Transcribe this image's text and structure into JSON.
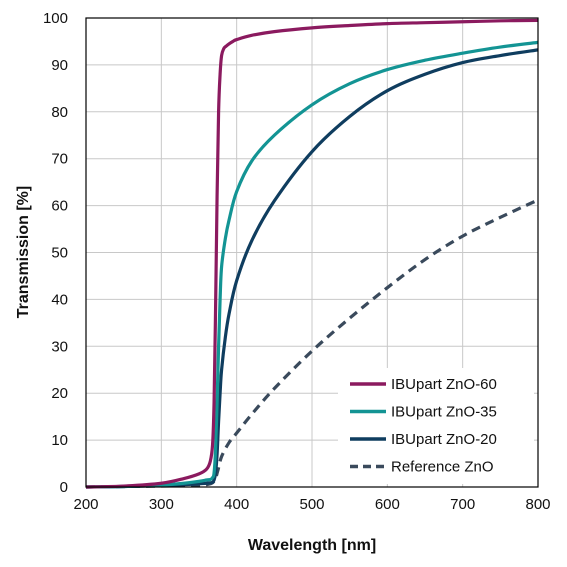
{
  "chart_data": {
    "type": "line",
    "xlabel": "Wavelength [nm]",
    "ylabel": "Transmission [%]",
    "xlim": [
      200,
      800
    ],
    "ylim": [
      0,
      100
    ],
    "x_ticks": [
      200,
      300,
      400,
      500,
      600,
      700,
      800
    ],
    "y_ticks": [
      0,
      10,
      20,
      30,
      40,
      50,
      60,
      70,
      80,
      90,
      100
    ],
    "x_tick_labels": [
      "200",
      "300",
      "400",
      "500",
      "600",
      "700",
      "800"
    ],
    "y_tick_labels": [
      "0",
      "10",
      "20",
      "30",
      "40",
      "50",
      "60",
      "70",
      "80",
      "90",
      "100"
    ],
    "grid": true,
    "legend_position": "bottom-right",
    "series": [
      {
        "name": "IBUpart ZnO-60",
        "color": "#8b1a5f",
        "dash": "solid",
        "x": [
          200,
          250,
          300,
          330,
          350,
          360,
          365,
          368,
          370,
          372,
          374,
          376,
          378,
          380,
          383,
          386,
          390,
          395,
          400,
          420,
          450,
          500,
          550,
          600,
          650,
          700,
          750,
          800
        ],
        "y": [
          0,
          0.2,
          0.8,
          1.8,
          2.8,
          3.8,
          5.5,
          9,
          18,
          38,
          62,
          80,
          88,
          92,
          93.5,
          94,
          94.5,
          95,
          95.4,
          96.3,
          97.1,
          97.9,
          98.4,
          98.8,
          99.0,
          99.2,
          99.4,
          99.5
        ]
      },
      {
        "name": "IBUpart ZnO-35",
        "color": "#139494",
        "dash": "solid",
        "x": [
          200,
          250,
          300,
          330,
          350,
          360,
          365,
          368,
          370,
          372,
          374,
          376,
          378,
          380,
          385,
          390,
          400,
          420,
          450,
          500,
          550,
          600,
          650,
          700,
          750,
          800
        ],
        "y": [
          0,
          0.1,
          0.4,
          0.8,
          1.2,
          1.5,
          1.6,
          2,
          3,
          8,
          18,
          30,
          40,
          47,
          53,
          57,
          63,
          69.5,
          75,
          81.5,
          86,
          89,
          91,
          92.5,
          93.8,
          94.8
        ]
      },
      {
        "name": "IBUpart ZnO-20",
        "color": "#0f3d5f",
        "dash": "solid",
        "x": [
          200,
          250,
          300,
          330,
          350,
          360,
          365,
          368,
          370,
          372,
          374,
          376,
          378,
          380,
          385,
          390,
          400,
          420,
          450,
          500,
          550,
          600,
          650,
          700,
          750,
          800
        ],
        "y": [
          0,
          0.1,
          0.3,
          0.5,
          0.7,
          0.8,
          0.9,
          1,
          1.5,
          3,
          7,
          14,
          20,
          25,
          32,
          37,
          44,
          52.5,
          61,
          71.5,
          79,
          84.5,
          88,
          90.5,
          92,
          93.2
        ]
      },
      {
        "name": "Reference ZnO",
        "color": "#3a4a5c",
        "dash": "dashed",
        "x": [
          200,
          250,
          300,
          340,
          360,
          370,
          375,
          380,
          390,
          400,
          420,
          450,
          500,
          550,
          600,
          650,
          700,
          750,
          800
        ],
        "y": [
          0,
          0.1,
          0.2,
          0.3,
          0.5,
          1.2,
          3.5,
          6.5,
          9.5,
          11.5,
          15.5,
          21,
          29,
          36,
          42.5,
          48.5,
          53.5,
          57.5,
          61.2
        ]
      }
    ]
  }
}
